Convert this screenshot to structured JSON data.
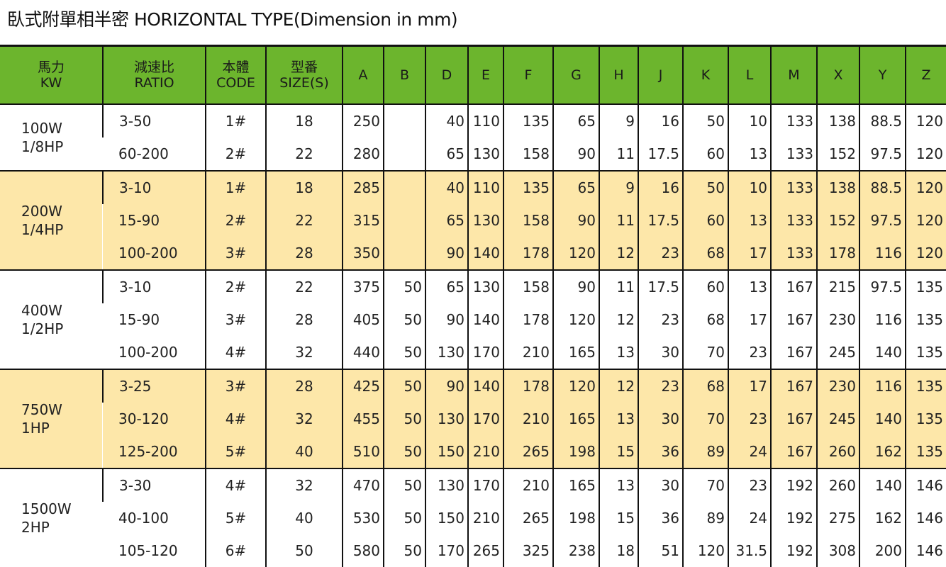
{
  "title": "臥式附單相半密 HORIZONTAL TYPE(Dimension in mm)",
  "colors": {
    "header": "#6cb52d",
    "alt_row": "#fde7a9"
  },
  "headers": [
    [
      "馬力",
      "KW"
    ],
    [
      "減速比",
      "RATIO"
    ],
    [
      "本體",
      "CODE"
    ],
    [
      "型番",
      "SIZE(S)"
    ],
    [
      "A"
    ],
    [
      "B"
    ],
    [
      "D"
    ],
    [
      "E"
    ],
    [
      "F"
    ],
    [
      "G"
    ],
    [
      "H"
    ],
    [
      "J"
    ],
    [
      "K"
    ],
    [
      "L"
    ],
    [
      "M"
    ],
    [
      "X"
    ],
    [
      "Y"
    ],
    [
      "Z"
    ]
  ],
  "groups": [
    {
      "power": [
        "100W",
        "1/8HP"
      ],
      "rows": [
        [
          "3-50",
          "1#",
          "18",
          "250",
          "",
          "40",
          "110",
          "135",
          "65",
          "9",
          "16",
          "50",
          "10",
          "133",
          "138",
          "88.5",
          "120"
        ],
        [
          "60-200",
          "2#",
          "22",
          "280",
          "",
          "65",
          "130",
          "158",
          "90",
          "11",
          "17.5",
          "60",
          "13",
          "133",
          "152",
          "97.5",
          "120"
        ]
      ]
    },
    {
      "power": [
        "200W",
        "1/4HP"
      ],
      "rows": [
        [
          "3-10",
          "1#",
          "18",
          "285",
          "",
          "40",
          "110",
          "135",
          "65",
          "9",
          "16",
          "50",
          "10",
          "133",
          "138",
          "88.5",
          "120"
        ],
        [
          "15-90",
          "2#",
          "22",
          "315",
          "",
          "65",
          "130",
          "158",
          "90",
          "11",
          "17.5",
          "60",
          "13",
          "133",
          "152",
          "97.5",
          "120"
        ],
        [
          "100-200",
          "3#",
          "28",
          "350",
          "",
          "90",
          "140",
          "178",
          "120",
          "12",
          "23",
          "68",
          "17",
          "133",
          "178",
          "116",
          "120"
        ]
      ]
    },
    {
      "power": [
        "400W",
        "1/2HP"
      ],
      "rows": [
        [
          "3-10",
          "2#",
          "22",
          "375",
          "50",
          "65",
          "130",
          "158",
          "90",
          "11",
          "17.5",
          "60",
          "13",
          "167",
          "215",
          "97.5",
          "135"
        ],
        [
          "15-90",
          "3#",
          "28",
          "405",
          "50",
          "90",
          "140",
          "178",
          "120",
          "12",
          "23",
          "68",
          "17",
          "167",
          "230",
          "116",
          "135"
        ],
        [
          "100-200",
          "4#",
          "32",
          "440",
          "50",
          "130",
          "170",
          "210",
          "165",
          "13",
          "30",
          "70",
          "23",
          "167",
          "245",
          "140",
          "135"
        ]
      ]
    },
    {
      "power": [
        "750W",
        "1HP"
      ],
      "rows": [
        [
          "3-25",
          "3#",
          "28",
          "425",
          "50",
          "90",
          "140",
          "178",
          "120",
          "12",
          "23",
          "68",
          "17",
          "167",
          "230",
          "116",
          "135"
        ],
        [
          "30-120",
          "4#",
          "32",
          "455",
          "50",
          "130",
          "170",
          "210",
          "165",
          "13",
          "30",
          "70",
          "23",
          "167",
          "245",
          "140",
          "135"
        ],
        [
          "125-200",
          "5#",
          "40",
          "510",
          "50",
          "150",
          "210",
          "265",
          "198",
          "15",
          "36",
          "89",
          "24",
          "167",
          "260",
          "162",
          "135"
        ]
      ]
    },
    {
      "power": [
        "1500W",
        "2HP"
      ],
      "rows": [
        [
          "3-30",
          "4#",
          "32",
          "470",
          "50",
          "130",
          "170",
          "210",
          "165",
          "13",
          "30",
          "70",
          "23",
          "192",
          "260",
          "140",
          "146"
        ],
        [
          "40-100",
          "5#",
          "40",
          "530",
          "50",
          "150",
          "210",
          "265",
          "198",
          "15",
          "36",
          "89",
          "24",
          "192",
          "275",
          "162",
          "146"
        ],
        [
          "105-120",
          "6#",
          "50",
          "580",
          "50",
          "170",
          "265",
          "325",
          "238",
          "18",
          "51",
          "120",
          "31.5",
          "192",
          "308",
          "200",
          "146"
        ]
      ]
    }
  ]
}
